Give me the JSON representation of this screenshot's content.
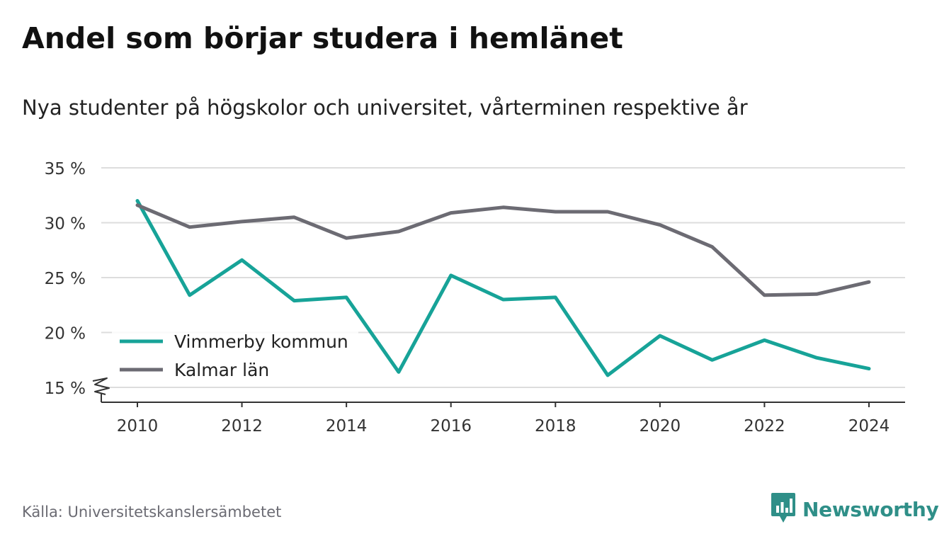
{
  "header": {
    "title": "Andel som börjar studera i hemlänet",
    "subtitle": "Nya studenter på högskolor och universitet, vårterminen respektive år"
  },
  "footer": {
    "source": "Källa: Universitetskanslersämbetet",
    "brand": "Newsworthy",
    "brand_icon": "bar-chart-speech-bubble-icon",
    "brand_color": "#2f8f88"
  },
  "chart_data": {
    "type": "line",
    "x": [
      2010,
      2011,
      2012,
      2013,
      2014,
      2015,
      2016,
      2017,
      2018,
      2019,
      2020,
      2021,
      2022,
      2023,
      2024
    ],
    "series": [
      {
        "name": "Vimmerby kommun",
        "color": "#17a398",
        "values": [
          32.0,
          23.4,
          26.6,
          22.9,
          23.2,
          16.4,
          25.2,
          23.0,
          23.2,
          16.1,
          19.7,
          17.5,
          19.3,
          17.7,
          16.7
        ]
      },
      {
        "name": "Kalmar län",
        "color": "#6c6b73",
        "values": [
          31.6,
          29.6,
          30.1,
          30.5,
          28.6,
          29.2,
          30.9,
          31.4,
          31.0,
          31.0,
          29.8,
          27.8,
          23.4,
          23.5,
          24.6
        ]
      }
    ],
    "y_ticks": [
      15,
      20,
      25,
      30,
      35
    ],
    "y_tick_labels": [
      "15 %",
      "20 %",
      "25 %",
      "30 %",
      "35 %"
    ],
    "x_ticks": [
      2010,
      2012,
      2014,
      2016,
      2018,
      2020,
      2022,
      2024
    ],
    "x_tick_labels": [
      "2010",
      "2012",
      "2014",
      "2016",
      "2018",
      "2020",
      "2022",
      "2024"
    ],
    "ylim": [
      15,
      35
    ],
    "xlim": [
      2010,
      2024
    ],
    "y_axis_break": true,
    "grid": "horizontal",
    "legend": "bottom-left",
    "xlabel": "",
    "ylabel": ""
  }
}
